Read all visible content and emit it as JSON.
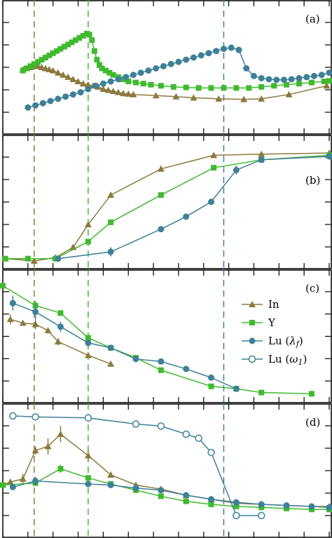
{
  "colors": {
    "In": "#8b7a3e",
    "Y": "#3fba2e",
    "Lu": "#3e8098",
    "frame": "#000000"
  },
  "chart_data": [
    {
      "type": "line",
      "panel_label": "(a)",
      "xlim": [
        0,
        13
      ],
      "ylim": [
        0,
        1
      ],
      "vlines": [
        {
          "x": 1.25,
          "color": "In"
        },
        {
          "x": 3.4,
          "color": "Y"
        },
        {
          "x": 8.8,
          "color": "Lu"
        }
      ],
      "series": [
        {
          "id": "In",
          "marker": "triangle",
          "x": [
            0.8,
            0.95,
            1.1,
            1.25,
            1.4,
            1.55,
            1.7,
            1.85,
            2.0,
            2.2,
            2.4,
            2.6,
            2.8,
            3.0,
            3.2,
            3.4,
            3.6,
            3.8,
            4.0,
            4.2,
            4.4,
            4.6,
            4.8,
            5.0,
            5.2,
            6.1,
            6.9,
            7.6,
            8.6,
            9.6,
            10.3,
            11.4,
            12.9
          ],
          "y": [
            0.49,
            0.5,
            0.51,
            0.52,
            0.52,
            0.51,
            0.5,
            0.49,
            0.48,
            0.46,
            0.44,
            0.42,
            0.4,
            0.38,
            0.36,
            0.35,
            0.34,
            0.33,
            0.31,
            0.3,
            0.29,
            0.28,
            0.27,
            0.265,
            0.26,
            0.25,
            0.24,
            0.23,
            0.22,
            0.215,
            0.22,
            0.26,
            0.34
          ]
        },
        {
          "id": "Y",
          "marker": "square",
          "x": [
            0.8,
            0.95,
            1.1,
            1.25,
            1.4,
            1.55,
            1.7,
            1.85,
            2.0,
            2.15,
            2.3,
            2.45,
            2.6,
            2.75,
            2.9,
            3.05,
            3.2,
            3.35,
            3.45,
            3.55,
            3.65,
            3.75,
            3.85,
            3.95,
            4.1,
            4.25,
            4.4,
            4.6,
            4.8,
            5.0,
            5.3,
            5.6,
            5.9,
            6.3,
            6.8,
            7.3,
            7.8,
            8.3,
            8.8,
            9.3,
            9.8,
            10.3,
            10.8,
            11.3,
            11.8,
            12.3,
            12.8,
            13.0
          ],
          "y": [
            0.48,
            0.5,
            0.52,
            0.54,
            0.56,
            0.58,
            0.6,
            0.62,
            0.64,
            0.66,
            0.68,
            0.7,
            0.72,
            0.74,
            0.76,
            0.78,
            0.8,
            0.82,
            0.81,
            0.76,
            0.66,
            0.58,
            0.53,
            0.5,
            0.48,
            0.46,
            0.44,
            0.42,
            0.4,
            0.38,
            0.37,
            0.36,
            0.35,
            0.34,
            0.33,
            0.325,
            0.32,
            0.32,
            0.32,
            0.32,
            0.32,
            0.33,
            0.34,
            0.35,
            0.36,
            0.37,
            0.38,
            0.385
          ]
        },
        {
          "id": "Lu",
          "marker": "circle",
          "x": [
            1.0,
            1.3,
            1.6,
            1.9,
            2.2,
            2.5,
            2.8,
            3.1,
            3.4,
            3.7,
            4.0,
            4.3,
            4.6,
            4.9,
            5.2,
            5.5,
            5.8,
            6.1,
            6.4,
            6.7,
            7.0,
            7.3,
            7.6,
            7.9,
            8.2,
            8.5,
            8.8,
            9.1,
            9.4,
            9.7,
            10.0,
            10.3,
            10.6,
            10.9,
            11.2,
            11.5,
            11.8,
            12.1,
            12.4,
            12.7,
            13.0
          ],
          "y": [
            0.14,
            0.16,
            0.18,
            0.2,
            0.22,
            0.24,
            0.26,
            0.28,
            0.31,
            0.34,
            0.36,
            0.38,
            0.4,
            0.42,
            0.44,
            0.46,
            0.48,
            0.5,
            0.52,
            0.54,
            0.56,
            0.58,
            0.6,
            0.62,
            0.64,
            0.66,
            0.68,
            0.69,
            0.67,
            0.5,
            0.43,
            0.41,
            0.4,
            0.395,
            0.395,
            0.4,
            0.41,
            0.42,
            0.43,
            0.44,
            0.46
          ]
        }
      ]
    },
    {
      "type": "line",
      "panel_label": "(b)",
      "xlim": [
        0,
        13
      ],
      "ylim": [
        0,
        1
      ],
      "series": [
        {
          "id": "In",
          "marker": "triangle",
          "x": [
            0.1,
            1.25,
            2.1,
            2.8,
            3.4,
            4.3,
            6.3,
            8.4,
            10.3,
            13.0
          ],
          "y": [
            0.02,
            0.0,
            0.03,
            0.12,
            0.32,
            0.58,
            0.81,
            0.93,
            0.94,
            0.95
          ],
          "err": [
            0,
            0,
            0,
            0,
            0.02,
            0.02,
            0,
            0,
            0,
            0
          ]
        },
        {
          "id": "Y",
          "marker": "square",
          "x": [
            0.1,
            1.0,
            2.1,
            3.4,
            4.3,
            6.3,
            8.4,
            10.3,
            13.0
          ],
          "y": [
            0.02,
            0.02,
            0.02,
            0.17,
            0.34,
            0.58,
            0.82,
            0.89,
            0.93
          ],
          "err": [
            0,
            0,
            0,
            0,
            0,
            0,
            0,
            0,
            0
          ]
        },
        {
          "id": "Lu",
          "marker": "circle",
          "x": [
            2.2,
            4.3,
            6.3,
            7.3,
            8.3,
            9.3,
            10.3,
            13.0
          ],
          "y": [
            0.02,
            0.08,
            0.28,
            0.39,
            0.52,
            0.8,
            0.89,
            0.92
          ],
          "err": [
            0,
            0.04,
            0.02,
            0,
            0,
            0.04,
            0,
            0
          ]
        }
      ]
    },
    {
      "type": "line",
      "panel_label": "(c)",
      "xlim": [
        0,
        13
      ],
      "ylim": [
        0,
        1
      ],
      "series": [
        {
          "id": "In",
          "marker": "triangle",
          "x": [
            0.3,
            0.8,
            1.3,
            1.8,
            2.2,
            3.4,
            4.3
          ],
          "y": [
            0.66,
            0.63,
            0.62,
            0.57,
            0.48,
            0.37,
            0.3
          ],
          "err": [
            0.04,
            0,
            0.04,
            0,
            0.03,
            0,
            0
          ]
        },
        {
          "id": "Y",
          "marker": "square",
          "x": [
            0,
            1.3,
            2.3,
            3.4,
            4.3,
            5.3,
            6.3,
            8.3,
            9.3,
            10.3,
            12.3
          ],
          "y": [
            0.93,
            0.77,
            0.71,
            0.51,
            0.43,
            0.35,
            0.25,
            0.12,
            0.1,
            0.07,
            0.06
          ],
          "err": [
            0,
            0.04,
            0,
            0.02,
            0,
            0,
            0,
            0,
            0,
            0,
            0
          ]
        },
        {
          "id": "Lu (λf)",
          "marker": "circle",
          "x": [
            0.4,
            1.3,
            2.3,
            3.4,
            4.3,
            5.3,
            6.3,
            7.3,
            8.3,
            9.3
          ],
          "y": [
            0.79,
            0.72,
            0.6,
            0.47,
            0.43,
            0.34,
            0.32,
            0.26,
            0.19,
            0.1
          ],
          "err": [
            0.06,
            0.06,
            0.04,
            0.03,
            0,
            0,
            0,
            0,
            0,
            0
          ]
        }
      ]
    },
    {
      "type": "line",
      "panel_label": "(d)",
      "xlim": [
        0,
        13
      ],
      "ylim": [
        0,
        1
      ],
      "series": [
        {
          "id": "In",
          "marker": "triangle",
          "x": [
            0,
            0.3,
            0.8,
            1.3,
            1.8,
            2.3,
            3.4,
            4.3,
            5.3,
            6.3,
            7.3,
            8.3,
            9.3,
            10.3,
            11.3,
            12.3,
            13.0
          ],
          "y": [
            0.3,
            0.33,
            0.36,
            0.64,
            0.68,
            0.8,
            0.59,
            0.4,
            0.3,
            0.26,
            0.2,
            0.16,
            0.12,
            0.11,
            0.1,
            0.09,
            0.09
          ],
          "err": [
            0,
            0.03,
            0.05,
            0.04,
            0.08,
            0.08,
            0.06,
            0,
            0,
            0,
            0,
            0,
            0,
            0,
            0,
            0,
            0
          ]
        },
        {
          "id": "Y",
          "marker": "square",
          "x": [
            0,
            1.3,
            2.3,
            3.4,
            4.3,
            5.3,
            6.3,
            7.3,
            8.3,
            9.3,
            10.3,
            11.3,
            12.3,
            13.0
          ],
          "y": [
            0.3,
            0.32,
            0.46,
            0.37,
            0.31,
            0.25,
            0.19,
            0.14,
            0.11,
            0.09,
            0.08,
            0.07,
            0.06,
            0.06
          ],
          "err": [
            0,
            0,
            0.04,
            0,
            0,
            0,
            0,
            0,
            0,
            0,
            0,
            0,
            0,
            0
          ]
        },
        {
          "id": "Lu",
          "marker": "circle",
          "x": [
            0.4,
            1.3,
            3.4,
            4.3,
            5.3,
            6.3,
            7.3,
            8.3,
            9.3,
            10.3,
            11.3,
            12.3,
            13.0
          ],
          "y": [
            0.28,
            0.34,
            0.31,
            0.3,
            0.27,
            0.25,
            0.2,
            0.16,
            0.13,
            0.11,
            0.1,
            0.09,
            0.08
          ],
          "err": [
            0,
            0.04,
            0,
            0,
            0,
            0,
            0,
            0,
            0,
            0,
            0,
            0,
            0
          ]
        }
      ],
      "open_series": {
        "id": "Lu (ω1)",
        "marker": "open-circle",
        "x": [
          0.4,
          1.3,
          3.4,
          5.3,
          6.3,
          7.3,
          7.8,
          8.3,
          9.3,
          10.3
        ],
        "y": [
          0.98,
          0.97,
          0.96,
          0.9,
          0.88,
          0.8,
          0.76,
          0.62,
          0.0,
          0.0
        ]
      }
    }
  ],
  "legend": {
    "items": [
      {
        "id": "In",
        "label": "In",
        "marker": "triangle"
      },
      {
        "id": "Y",
        "label": "Y",
        "marker": "square"
      },
      {
        "id": "Lu",
        "label": "Lu (",
        "sym": "λ",
        "sub": "f",
        "close": ")",
        "marker": "circle"
      },
      {
        "id": "Lu",
        "label": "Lu (",
        "sym": "ω",
        "sub": "1",
        "close": ")",
        "marker": "open-circle"
      }
    ]
  }
}
